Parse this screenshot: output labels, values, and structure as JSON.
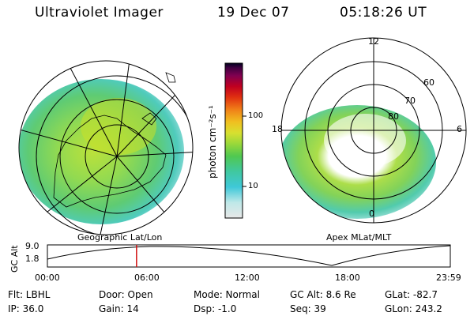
{
  "header": {
    "instrument": "Ultraviolet Imager",
    "date": "19 Dec 07",
    "time": "05:18:26 UT"
  },
  "left_panel": {
    "caption": "Geographic Lat/Lon"
  },
  "right_panel": {
    "caption": "Apex MLat/MLT",
    "mlt_labels": [
      "12",
      "18",
      "6",
      "0"
    ],
    "mlat_labels": [
      "60",
      "70",
      "80"
    ]
  },
  "colorbar": {
    "label": "photon cm⁻²s⁻¹",
    "ticks": [
      "100",
      "10"
    ],
    "colors": [
      "#e8e8e8",
      "#bfe8e8",
      "#3fc8d8",
      "#40c8a0",
      "#50c850",
      "#9ad83a",
      "#d8e030",
      "#f0c020",
      "#f08018",
      "#e03010",
      "#c00020",
      "#800050",
      "#400040",
      "#000020"
    ]
  },
  "altitude_plot": {
    "ylabel": "GC Alt",
    "yticks": [
      "9.0",
      "1.8"
    ],
    "xticks": [
      "00:00",
      "06:00",
      "12:00",
      "18:00",
      "23:59"
    ],
    "marker_time_hours": 5.31,
    "marker_color": "#d01010"
  },
  "info": {
    "flt": "Flt: LBHL",
    "ip": "IP: 36.0",
    "door": "Door: Open",
    "gain": "Gain: 14",
    "mode": "Mode: Normal",
    "dsp": "Dsp:   -1.0",
    "gcalt": "GC Alt: 8.6 Re",
    "seq": "Seq: 39",
    "glat": "GLat: -82.7",
    "glon": "GLon: 243.2"
  }
}
